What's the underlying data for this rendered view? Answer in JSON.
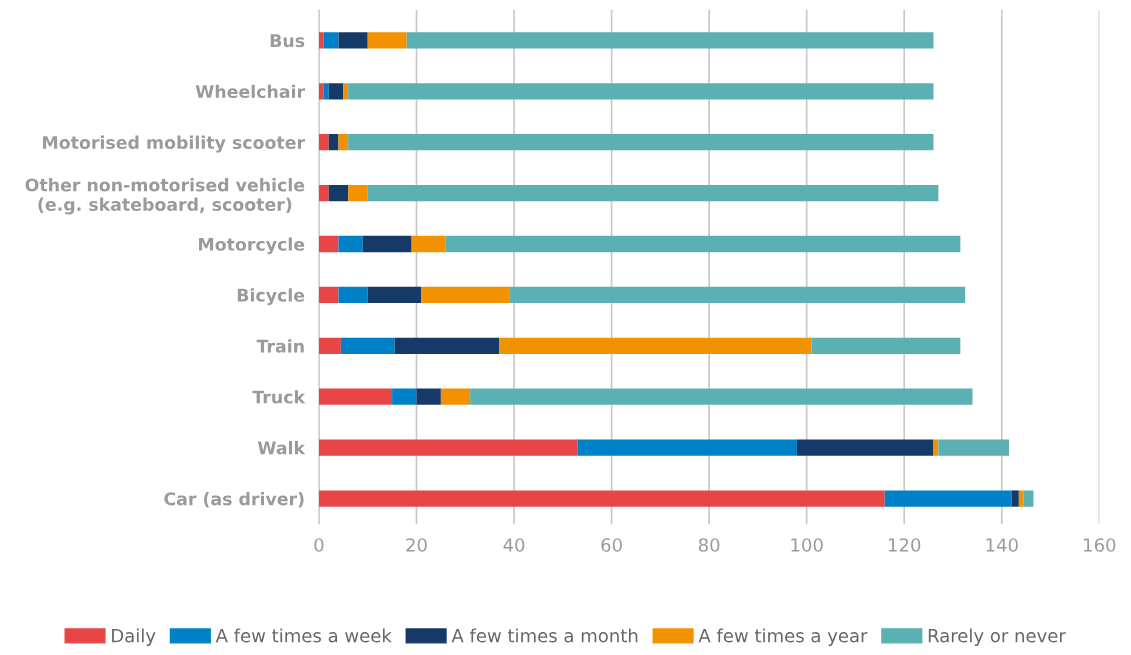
{
  "chart_data": {
    "type": "bar",
    "orientation": "horizontal",
    "stacked": true,
    "categories": [
      "Bus",
      "Wheelchair",
      "Motorised mobility scooter",
      "Other non-motorised vehicle\n(e.g. skateboard, scooter)",
      "Motorcycle",
      "Bicycle",
      "Train",
      "Truck",
      "Walk",
      "Car (as driver)"
    ],
    "series": [
      {
        "name": "Daily",
        "color": "#e84646",
        "values": [
          1,
          1,
          2,
          2,
          4,
          4,
          4.5,
          15,
          53,
          116
        ]
      },
      {
        "name": "A few times a week",
        "color": "#0080c6",
        "values": [
          3,
          1,
          0,
          0,
          5,
          6,
          11,
          5,
          45,
          26
        ]
      },
      {
        "name": "A few times a month",
        "color": "#163a68",
        "values": [
          6,
          3,
          2,
          4,
          10,
          11,
          21.5,
          5,
          28,
          1.5
        ]
      },
      {
        "name": "A few times a year",
        "color": "#f39200",
        "values": [
          8,
          1,
          2,
          4,
          7,
          18,
          64,
          6,
          1,
          1
        ]
      },
      {
        "name": "Rarely or never",
        "color": "#5ab0b2",
        "values": [
          108,
          120,
          120,
          117,
          105.5,
          93.5,
          30.5,
          103,
          14.5,
          2
        ]
      }
    ],
    "xlim": [
      0,
      160
    ],
    "xticks": [
      0,
      20,
      40,
      60,
      80,
      100,
      120,
      140,
      160
    ],
    "grid": "x",
    "legend": "bottom"
  }
}
